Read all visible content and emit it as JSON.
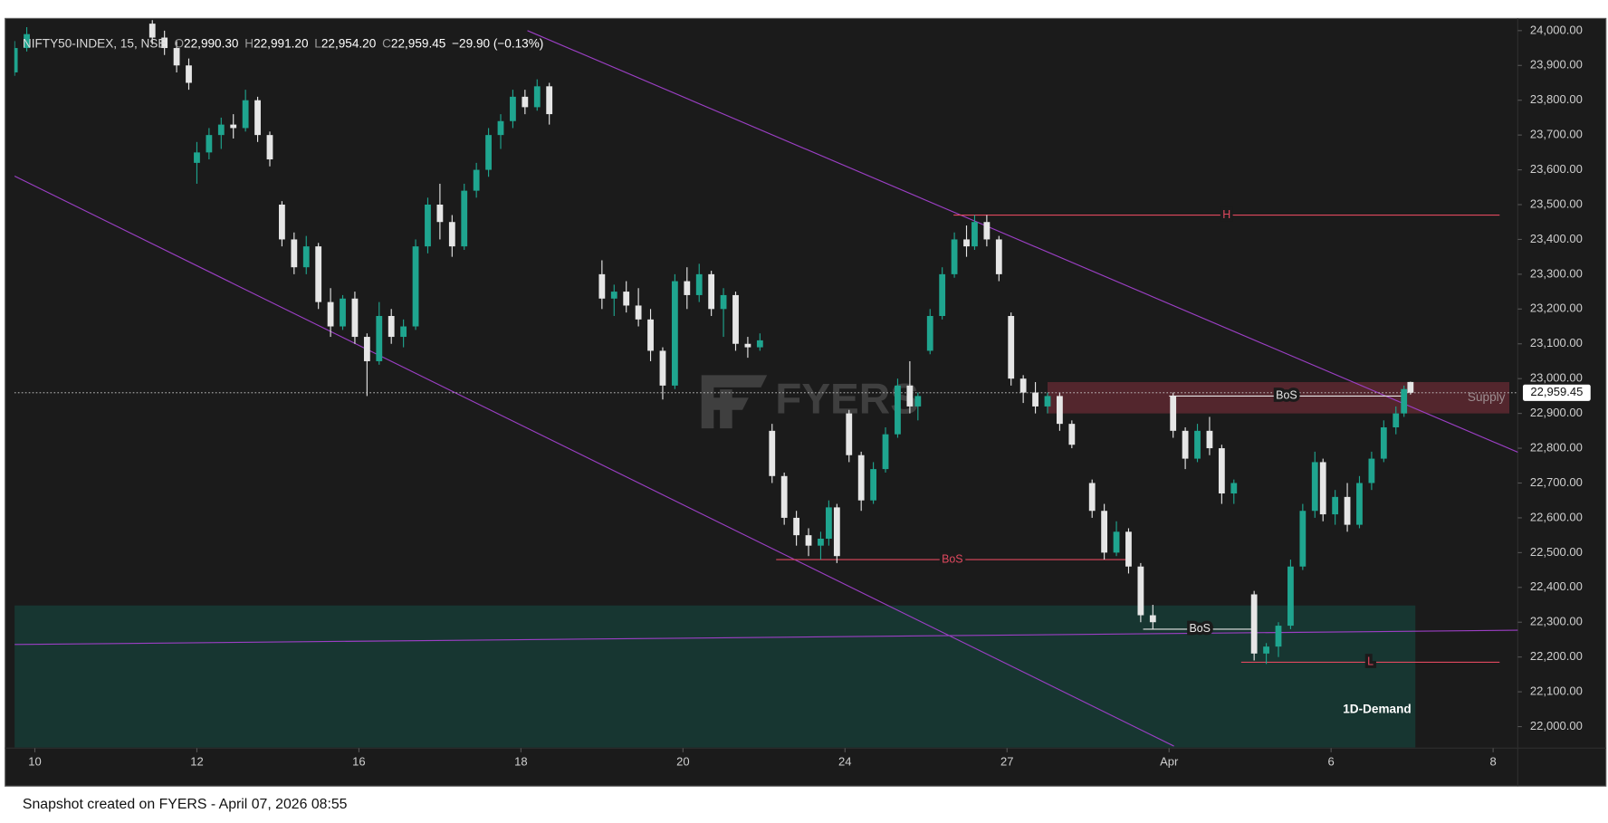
{
  "chart_data": {
    "type": "candlestick",
    "header": {
      "symbol": "NIFTY50-INDEX, 15, NSE",
      "open_prefix": "O",
      "open": "22,990.30",
      "high_prefix": "H",
      "high": "22,991.20",
      "low_prefix": "L",
      "low": "22,954.20",
      "close_prefix": "C",
      "close": "22,959.45",
      "change": "−29.90 (−0.13%)"
    },
    "watermark": "FYERS",
    "footer": "Snapshot created on FYERS - April 07, 2026 08:55",
    "up_color": "#1fa58f",
    "down_color": "#e6e6e6",
    "x": [
      -0.25,
      -0.1,
      1.45,
      1.6,
      1.75,
      1.9,
      2.0,
      2.15,
      2.3,
      2.45,
      2.6,
      2.75,
      2.9,
      3.05,
      3.2,
      3.35,
      3.5,
      3.65,
      3.8,
      3.95,
      4.1,
      4.25,
      4.4,
      4.55,
      4.7,
      4.85,
      5.0,
      5.15,
      5.3,
      5.45,
      5.6,
      5.75,
      5.9,
      6.05,
      6.2,
      6.35,
      7.0,
      7.15,
      7.3,
      7.45,
      7.6,
      7.75,
      7.9,
      8.05,
      8.2,
      8.35,
      8.5,
      8.65,
      8.8,
      8.95,
      9.1,
      9.25,
      9.4,
      9.55,
      9.7,
      9.8,
      9.9,
      10.05,
      10.2,
      10.35,
      10.5,
      10.65,
      10.8,
      10.9,
      11.05,
      11.2,
      11.35,
      11.5,
      11.6,
      11.75,
      11.9,
      12.05,
      12.2,
      12.35,
      12.5,
      12.65,
      12.8,
      13.05,
      13.2,
      13.35,
      13.5,
      13.65,
      13.8,
      14.05,
      14.2,
      14.35,
      14.5,
      14.65,
      14.8,
      15.05,
      15.2,
      15.35,
      15.5,
      15.65,
      15.8,
      15.9,
      16.05,
      16.2,
      16.35,
      16.5,
      16.65,
      16.8,
      16.9,
      16.98
    ],
    "open": [
      23880,
      23950,
      24020,
      23980,
      23950,
      23900,
      23620,
      23650,
      23700,
      23730,
      23720,
      23800,
      23700,
      23500,
      23400,
      23320,
      23380,
      23220,
      23150,
      23230,
      23120,
      23050,
      23180,
      23120,
      23150,
      23380,
      23500,
      23450,
      23380,
      23540,
      23600,
      23700,
      23740,
      23810,
      23780,
      23840,
      23300,
      23230,
      23250,
      23210,
      23170,
      23080,
      22980,
      23280,
      23240,
      23300,
      23200,
      23240,
      23100,
      23090,
      22850,
      22720,
      22600,
      22550,
      22520,
      22540,
      22630,
      22900,
      22780,
      22650,
      22740,
      22840,
      22980,
      22920,
      23080,
      23180,
      23300,
      23400,
      23380,
      23450,
      23400,
      23180,
      23000,
      22960,
      22920,
      22950,
      22870,
      22700,
      22620,
      22500,
      22560,
      22460,
      22320,
      22950,
      22850,
      22770,
      22850,
      22800,
      22670,
      22380,
      22210,
      22230,
      22290,
      22460,
      22620,
      22760,
      22610,
      22660,
      22580,
      22700,
      22770,
      22860,
      22900,
      22990.3
    ],
    "high": [
      23970,
      24010,
      24030,
      24000,
      23970,
      23920,
      23680,
      23720,
      23750,
      23760,
      23830,
      23810,
      23710,
      23510,
      23420,
      23410,
      23390,
      23260,
      23240,
      23250,
      23130,
      23220,
      23200,
      23170,
      23400,
      23520,
      23560,
      23470,
      23560,
      23620,
      23720,
      23760,
      23830,
      23830,
      23860,
      23850,
      23340,
      23270,
      23280,
      23260,
      23200,
      23090,
      23300,
      23320,
      23330,
      23310,
      23260,
      23250,
      23120,
      23130,
      22870,
      22730,
      22620,
      22570,
      22560,
      22650,
      22640,
      22910,
      22790,
      22760,
      22860,
      23000,
      23050,
      22960,
      23200,
      23320,
      23420,
      23440,
      23470,
      23470,
      23410,
      23190,
      23010,
      22990,
      22960,
      22960,
      22880,
      22710,
      22640,
      22590,
      22570,
      22470,
      22350,
      22960,
      22860,
      22870,
      22890,
      22810,
      22710,
      22390,
      22240,
      22300,
      22480,
      22640,
      22790,
      22770,
      22680,
      22700,
      22720,
      22790,
      22880,
      22920,
      22980,
      22991.2
    ],
    "low": [
      23870,
      23940,
      23960,
      23930,
      23880,
      23830,
      23560,
      23630,
      23660,
      23690,
      23710,
      23680,
      23610,
      23380,
      23300,
      23300,
      23200,
      23120,
      23140,
      23100,
      22950,
      23040,
      23100,
      23090,
      23140,
      23360,
      23400,
      23350,
      23370,
      23520,
      23580,
      23660,
      23720,
      23760,
      23770,
      23730,
      23200,
      23180,
      23190,
      23150,
      23050,
      22940,
      22970,
      23200,
      23220,
      23180,
      23120,
      23080,
      23060,
      23080,
      22700,
      22580,
      22520,
      22490,
      22480,
      22520,
      22470,
      22760,
      22620,
      22640,
      22730,
      22830,
      22900,
      22880,
      23070,
      23170,
      23290,
      23350,
      23370,
      23380,
      23280,
      22980,
      22930,
      22900,
      22900,
      22850,
      22800,
      22600,
      22480,
      22490,
      22440,
      22300,
      22280,
      22830,
      22740,
      22760,
      22780,
      22640,
      22640,
      22190,
      22180,
      22200,
      22280,
      22450,
      22600,
      22590,
      22580,
      22560,
      22570,
      22680,
      22760,
      22840,
      22890,
      22954.2
    ],
    "close": [
      23950,
      23990,
      23980,
      23950,
      23900,
      23850,
      23650,
      23700,
      23730,
      23720,
      23800,
      23700,
      23630,
      23400,
      23320,
      23380,
      23220,
      23150,
      23230,
      23120,
      23050,
      23180,
      23120,
      23150,
      23380,
      23500,
      23450,
      23380,
      23540,
      23600,
      23700,
      23740,
      23810,
      23780,
      23840,
      23760,
      23230,
      23250,
      23210,
      23170,
      23080,
      22980,
      23280,
      23240,
      23300,
      23200,
      23240,
      23100,
      23090,
      23110,
      22720,
      22600,
      22550,
      22520,
      22540,
      22630,
      22490,
      22780,
      22650,
      22740,
      22840,
      22980,
      22920,
      22950,
      23180,
      23300,
      23400,
      23380,
      23450,
      23400,
      23300,
      23000,
      22960,
      22920,
      22950,
      22870,
      22810,
      22620,
      22500,
      22560,
      22460,
      22320,
      22300,
      22850,
      22770,
      22850,
      22800,
      22670,
      22700,
      22210,
      22230,
      22290,
      22460,
      22620,
      22760,
      22610,
      22660,
      22580,
      22700,
      22770,
      22860,
      22900,
      22970,
      22959.45
    ],
    "xlim": [
      -0.253,
      18.304
    ],
    "xticks": [
      {
        "value": 0,
        "label": "10"
      },
      {
        "value": 2,
        "label": "12"
      },
      {
        "value": 4,
        "label": "16"
      },
      {
        "value": 6,
        "label": "18"
      },
      {
        "value": 8,
        "label": "20"
      },
      {
        "value": 10,
        "label": "24"
      },
      {
        "value": 12,
        "label": "27"
      },
      {
        "value": 14,
        "label": "Apr"
      },
      {
        "value": 16,
        "label": "6"
      },
      {
        "value": 18,
        "label": "8"
      }
    ],
    "ylim": [
      21938,
      24035
    ],
    "yticks": [
      {
        "value": 22000,
        "label": "22,000.00"
      },
      {
        "value": 22100,
        "label": "22,100.00"
      },
      {
        "value": 22200,
        "label": "22,200.00"
      },
      {
        "value": 22300,
        "label": "22,300.00"
      },
      {
        "value": 22400,
        "label": "22,400.00"
      },
      {
        "value": 22500,
        "label": "22,500.00"
      },
      {
        "value": 22600,
        "label": "22,600.00"
      },
      {
        "value": 22700,
        "label": "22,700.00"
      },
      {
        "value": 22800,
        "label": "22,800.00"
      },
      {
        "value": 22900,
        "label": "22,900.00"
      },
      {
        "value": 23000,
        "label": "23,000.00"
      },
      {
        "value": 23100,
        "label": "23,100.00"
      },
      {
        "value": 23200,
        "label": "23,200.00"
      },
      {
        "value": 23300,
        "label": "23,300.00"
      },
      {
        "value": 23400,
        "label": "23,400.00"
      },
      {
        "value": 23500,
        "label": "23,500.00"
      },
      {
        "value": 23600,
        "label": "23,600.00"
      },
      {
        "value": 23700,
        "label": "23,700.00"
      },
      {
        "value": 23800,
        "label": "23,800.00"
      },
      {
        "value": 23900,
        "label": "23,900.00"
      },
      {
        "value": 24000,
        "label": "24,000.00"
      }
    ],
    "last_price": {
      "value": 22959.45,
      "label": "22,959.45"
    },
    "zones": [
      {
        "label": "Supply",
        "x": [
          12.5,
          18.2
        ],
        "y": [
          22900,
          22990
        ],
        "color": "#5a2830"
      },
      {
        "label": "1D-Demand",
        "x": [
          -0.25,
          17.04
        ],
        "y": [
          21940,
          22348
        ],
        "color": "#173a34"
      }
    ],
    "trendlines": [
      {
        "x": [
          6.08,
          18.35
        ],
        "y": [
          24000,
          22784
        ],
        "color": "#9b3fc4"
      },
      {
        "x": [
          -0.25,
          14.06
        ],
        "y": [
          23582,
          21944
        ],
        "color": "#9b3fc4"
      },
      {
        "x": [
          -0.25,
          18.35
        ],
        "y": [
          22236,
          22277
        ],
        "color": "#9b3fc4"
      }
    ],
    "hlines": [
      {
        "label": "H",
        "value": 23470,
        "x": [
          11.34,
          18.08
        ],
        "color": "#e0485e"
      },
      {
        "label": "BoS",
        "value": 22480,
        "x": [
          9.15,
          13.5
        ],
        "color": "#e0485e"
      },
      {
        "label": "BoS",
        "value": 22950,
        "x": [
          14.0,
          16.9
        ],
        "color": "#e8e8e8"
      },
      {
        "label": "BoS",
        "value": 22280,
        "x": [
          13.68,
          15.08
        ],
        "color": "#e8e8e8"
      },
      {
        "label": "L",
        "value": 22185,
        "x": [
          14.89,
          18.08
        ],
        "color": "#e0485e"
      }
    ]
  }
}
